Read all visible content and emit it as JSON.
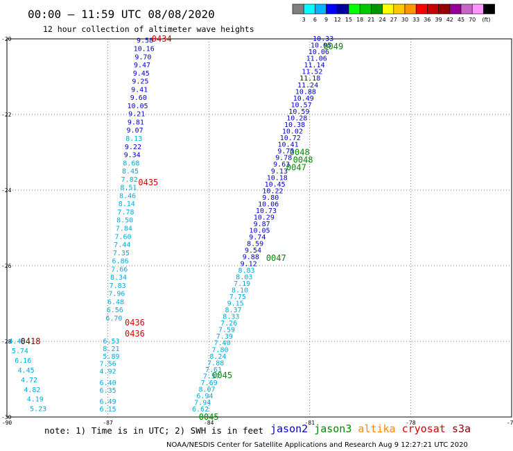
{
  "header": {
    "title": "00:00 — 11:59 UTC 08/08/2020",
    "subtitle": "12 hour collection of altimeter wave heights"
  },
  "colorbar": {
    "colors": [
      "#808080",
      "#00ffff",
      "#00b4ff",
      "#0000ff",
      "#0000a0",
      "#00ff00",
      "#00c800",
      "#009600",
      "#ffff00",
      "#ffc800",
      "#ff9600",
      "#ff0000",
      "#c80000",
      "#960000",
      "#960096",
      "#c864c8",
      "#ff96ff",
      "#000000"
    ],
    "labels": [
      "3",
      "6",
      "9",
      "12",
      "15",
      "18",
      "21",
      "24",
      "27",
      "30",
      "33",
      "36",
      "39",
      "42",
      "45",
      "70",
      "(ft)"
    ]
  },
  "chart_data": {
    "type": "scatter",
    "title": "00:00 — 11:59 UTC 08/08/2020",
    "subtitle": "12 hour collection of altimeter wave heights",
    "xlim": [
      -90,
      -75
    ],
    "ylim": [
      -30,
      -20
    ],
    "xticks": [
      -90,
      -87,
      -84,
      -81,
      -78,
      -75
    ],
    "yticks": [
      -20,
      -22,
      -24,
      -26,
      -28,
      -30
    ],
    "grid": true,
    "units": "SWH in feet, time in UTC",
    "series": [
      {
        "name": "jason2",
        "color": "#0000cc",
        "points": [
          {
            "lon": -86.9,
            "lat": -28.0,
            "v": "6.53"
          },
          {
            "lon": -86.9,
            "lat": -28.2,
            "v": "8.21"
          },
          {
            "lon": -86.9,
            "lat": -28.4,
            "v": "5.89"
          },
          {
            "lon": -87.0,
            "lat": -28.6,
            "v": "7.56"
          },
          {
            "lon": -87.0,
            "lat": -28.8,
            "v": "4.92"
          },
          {
            "lon": -87.0,
            "lat": -29.1,
            "v": "6.40"
          },
          {
            "lon": -87.0,
            "lat": -29.3,
            "v": "6.35"
          },
          {
            "lon": -87.0,
            "lat": -29.6,
            "v": "6.49"
          },
          {
            "lon": -87.0,
            "lat": -29.8,
            "v": "6.15"
          }
        ]
      },
      {
        "name": "jason3",
        "color": "#008800",
        "points": [
          {
            "lon": -81.3,
            "lat": -23.0,
            "v": "0048"
          },
          {
            "lon": -81.2,
            "lat": -23.2,
            "v": "0048"
          },
          {
            "lon": -81.4,
            "lat": -23.4,
            "v": "0047"
          },
          {
            "lon": -80.3,
            "lat": -20.2,
            "v": "0049"
          },
          {
            "lon": -82.0,
            "lat": -25.8,
            "v": "0047"
          },
          {
            "lon": -83.6,
            "lat": -28.9,
            "v": "0045"
          },
          {
            "lon": -84.0,
            "lat": -30.0,
            "v": "0045"
          }
        ]
      },
      {
        "name": "altika",
        "color": "#ff8800",
        "points": []
      },
      {
        "name": "cryosat",
        "color": "#dd0000",
        "points": [
          {
            "lon": -85.4,
            "lat": -20.0,
            "v": "0434"
          },
          {
            "lon": -85.8,
            "lat": -23.8,
            "v": "0435"
          },
          {
            "lon": -86.2,
            "lat": -27.5,
            "v": "0436"
          },
          {
            "lon": -86.2,
            "lat": -27.8,
            "v": "0436"
          }
        ]
      },
      {
        "name": "s3a",
        "color": "#880000",
        "points": [
          {
            "lon": -89.3,
            "lat": -28.0,
            "v": "0418"
          }
        ]
      }
    ]
  },
  "tracks": {
    "cryosat_values": [
      "9.58",
      "10.16",
      "9.70",
      "9.47",
      "9.45",
      "9.25",
      "9.41",
      "9.60",
      "10.05",
      "9.21",
      "9.81",
      "9.07",
      "8.13",
      "9.22",
      "9.34",
      "8.68",
      "8.45",
      "7.82",
      "8.51",
      "8.46",
      "8.14",
      "7.78",
      "8.50",
      "7.84",
      "7.60",
      "7.44",
      "7.35",
      "6.86",
      "7.66",
      "8.34",
      "7.83",
      "7.96",
      "6.48",
      "6.56",
      "6.70"
    ],
    "jason3_values": [
      "10.33",
      "10.05",
      "10.06",
      "11.06",
      "11.14",
      "11.52",
      "11.18",
      "11.24",
      "10.88",
      "10.49",
      "10.57",
      "10.59",
      "10.28",
      "10.38",
      "10.02",
      "10.72",
      "10.41",
      "9.75",
      "9.78",
      "9.63",
      "9.13",
      "10.18",
      "10.45",
      "10.22",
      "9.80",
      "10.06",
      "10.73",
      "10.29",
      "9.87",
      "10.05",
      "9.74",
      "8.59",
      "9.54",
      "9.88",
      "9.12",
      "8.83",
      "8.03",
      "7.19",
      "8.10",
      "7.75",
      "9.15",
      "8.37",
      "8.33",
      "7.26",
      "7.59",
      "7.39",
      "7.40",
      "7.80",
      "8.24",
      "7.88",
      "7.61",
      "7.57",
      "7.69",
      "8.07",
      "6.94",
      "7.94",
      "6.62"
    ],
    "s3a_values": [
      "4.48",
      "5.74",
      "6.16",
      "4.45",
      "4.72",
      "4.82",
      "4.19",
      "5.23"
    ]
  },
  "footer": {
    "note": "note: 1) Time is in UTC; 2) SWH is in feet",
    "legend": [
      {
        "label": "jason2",
        "color": "#0000cc"
      },
      {
        "label": "jason3",
        "color": "#008800"
      },
      {
        "label": "altika",
        "color": "#ff8800"
      },
      {
        "label": "cryosat",
        "color": "#dd0000"
      },
      {
        "label": "s3a",
        "color": "#880000"
      }
    ],
    "credit": "NOAA/NESDIS Center for Satellite Applications and Research   Aug  9 12:27:21 UTC 2020"
  }
}
